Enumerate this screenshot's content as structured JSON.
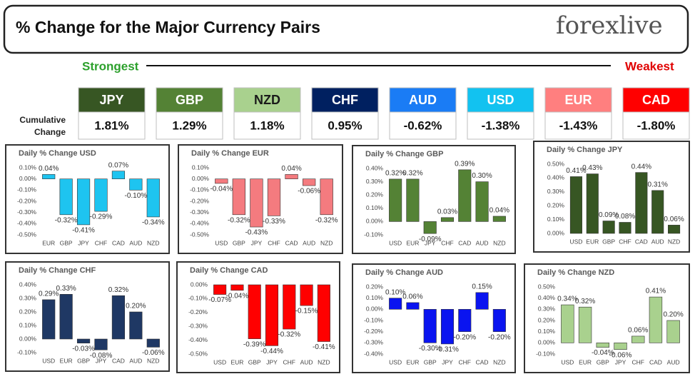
{
  "header": {
    "title": "% Change for the Major Currency Pairs",
    "logo": "forexlive"
  },
  "strength": {
    "strongest": "Strongest",
    "weakest": "Weakest",
    "row_label": [
      "Cumulative",
      "Change"
    ],
    "currencies": [
      {
        "name": "JPY",
        "value": "1.81%",
        "color": "#375623",
        "text_color": "#ffffff"
      },
      {
        "name": "GBP",
        "value": "1.29%",
        "color": "#548235",
        "text_color": "#ffffff"
      },
      {
        "name": "NZD",
        "value": "1.18%",
        "color": "#a9d18e",
        "text_color": "#1a1a1a"
      },
      {
        "name": "CHF",
        "value": "0.95%",
        "color": "#002060",
        "text_color": "#ffffff"
      },
      {
        "name": "AUD",
        "value": "-0.62%",
        "color": "#1a7cf5",
        "text_color": "#ffffff"
      },
      {
        "name": "USD",
        "value": "-1.38%",
        "color": "#12c2f0",
        "text_color": "#ffffff"
      },
      {
        "name": "EUR",
        "value": "-1.43%",
        "color": "#ff7f7f",
        "text_color": "#ffffff"
      },
      {
        "name": "CAD",
        "value": "-1.80%",
        "color": "#ff0000",
        "text_color": "#ffffff"
      }
    ]
  },
  "chart_data": [
    {
      "type": "bar",
      "title": "Daily % Change USD",
      "color": "#1ec4f0",
      "grid": false,
      "categories": [
        "EUR",
        "GBP",
        "JPY",
        "CHF",
        "CAD",
        "AUD",
        "NZD"
      ],
      "values": [
        0.04,
        -0.32,
        -0.41,
        -0.29,
        0.07,
        -0.1,
        -0.34
      ],
      "value_labels": [
        "0.04%",
        "-0.32%",
        "-0.41%",
        "-0.29%",
        "0.07%",
        "-0.10%",
        "-0.34%"
      ],
      "ylim": [
        -0.5,
        0.1
      ],
      "yticks": [
        {
          "value": 0.1,
          "label": "0.10%"
        },
        {
          "value": 0,
          "label": "0.00%"
        },
        {
          "value": -0.1,
          "label": "-0.10%"
        },
        {
          "value": -0.2,
          "label": "-0.20%"
        },
        {
          "value": -0.3,
          "label": "-0.30%"
        },
        {
          "value": -0.4,
          "label": "-0.40%"
        },
        {
          "value": -0.5,
          "label": "-0.50%"
        }
      ]
    },
    {
      "type": "bar",
      "title": "Daily % Change EUR",
      "color": "#f47b7f",
      "grid": false,
      "categories": [
        "USD",
        "GBP",
        "JPY",
        "CHF",
        "CAD",
        "AUD",
        "NZD"
      ],
      "values": [
        -0.04,
        -0.32,
        -0.43,
        -0.33,
        0.04,
        -0.06,
        -0.32
      ],
      "value_labels": [
        "-0.04%",
        "-0.32%",
        "-0.43%",
        "-0.33%",
        "0.04%",
        "-0.06%",
        "-0.32%"
      ],
      "ylim": [
        -0.5,
        0.1
      ],
      "yticks": [
        {
          "value": 0.1,
          "label": "0.10%"
        },
        {
          "value": 0,
          "label": "0.00%"
        },
        {
          "value": -0.1,
          "label": "-0.10%"
        },
        {
          "value": -0.2,
          "label": "-0.20%"
        },
        {
          "value": -0.3,
          "label": "-0.30%"
        },
        {
          "value": -0.4,
          "label": "-0.40%"
        },
        {
          "value": -0.5,
          "label": "-0.50%"
        }
      ]
    },
    {
      "type": "bar",
      "title": "Daily % Change GBP",
      "color": "#548235",
      "grid": false,
      "categories": [
        "USD",
        "EUR",
        "JPY",
        "CHF",
        "CAD",
        "AUD",
        "NZD"
      ],
      "values": [
        0.32,
        0.32,
        -0.09,
        0.03,
        0.39,
        0.3,
        0.04
      ],
      "value_labels": [
        "0.32%",
        "0.32%",
        "-0.09%",
        "0.03%",
        "0.39%",
        "0.30%",
        "0.04%"
      ],
      "ylim": [
        -0.1,
        0.4
      ],
      "yticks": [
        {
          "value": 0.4,
          "label": "0.40%"
        },
        {
          "value": 0.3,
          "label": "0.30%"
        },
        {
          "value": 0.2,
          "label": "0.20%"
        },
        {
          "value": 0.1,
          "label": "0.10%"
        },
        {
          "value": 0,
          "label": "0.00%"
        },
        {
          "value": -0.1,
          "label": "-0.10%"
        }
      ]
    },
    {
      "type": "bar",
      "title": "Daily % Change JPY",
      "color": "#375623",
      "grid": false,
      "categories": [
        "USD",
        "EUR",
        "GBP",
        "CHF",
        "CAD",
        "AUD",
        "NZD"
      ],
      "values": [
        0.41,
        0.43,
        0.09,
        0.08,
        0.44,
        0.31,
        0.06
      ],
      "value_labels": [
        "0.41%",
        "0.43%",
        "0.09%",
        "0.08%",
        "0.44%",
        "0.31%",
        "0.06%"
      ],
      "ylim": [
        0,
        0.5
      ],
      "yticks": [
        {
          "value": 0.5,
          "label": "0.50%"
        },
        {
          "value": 0.4,
          "label": "0.40%"
        },
        {
          "value": 0.3,
          "label": "0.30%"
        },
        {
          "value": 0.2,
          "label": "0.20%"
        },
        {
          "value": 0.1,
          "label": "0.10%"
        },
        {
          "value": 0,
          "label": "0.00%"
        }
      ]
    },
    {
      "type": "bar",
      "title": "Daily % Change CHF",
      "color": "#1f3864",
      "grid": false,
      "categories": [
        "USD",
        "EUR",
        "GBP",
        "JPY",
        "CAD",
        "AUD",
        "NZD"
      ],
      "values": [
        0.29,
        0.33,
        -0.03,
        -0.08,
        0.32,
        0.2,
        -0.06
      ],
      "value_labels": [
        "0.29%",
        "0.33%",
        "-0.03%",
        "-0.08%",
        "0.32%",
        "0.20%",
        "-0.06%"
      ],
      "ylim": [
        -0.1,
        0.4
      ],
      "yticks": [
        {
          "value": 0.4,
          "label": "0.40%"
        },
        {
          "value": 0.3,
          "label": "0.30%"
        },
        {
          "value": 0.2,
          "label": "0.20%"
        },
        {
          "value": 0.1,
          "label": "0.10%"
        },
        {
          "value": 0,
          "label": "0.00%"
        },
        {
          "value": -0.1,
          "label": "-0.10%"
        }
      ]
    },
    {
      "type": "bar",
      "title": "Daily % Change CAD",
      "color": "#ff0000",
      "grid": false,
      "categories": [
        "USD",
        "EUR",
        "GBP",
        "JPY",
        "CHF",
        "AUD",
        "NZD"
      ],
      "values": [
        -0.07,
        -0.04,
        -0.39,
        -0.44,
        -0.32,
        -0.15,
        -0.41
      ],
      "value_labels": [
        "-0.07%",
        "-0.04%",
        "-0.39%",
        "-0.44%",
        "-0.32%",
        "-0.15%",
        "-0.41%"
      ],
      "ylim": [
        -0.5,
        0
      ],
      "yticks": [
        {
          "value": 0,
          "label": "0.00%"
        },
        {
          "value": -0.1,
          "label": "-0.10%"
        },
        {
          "value": -0.2,
          "label": "-0.20%"
        },
        {
          "value": -0.3,
          "label": "-0.30%"
        },
        {
          "value": -0.4,
          "label": "-0.40%"
        },
        {
          "value": -0.5,
          "label": "-0.50%"
        }
      ]
    },
    {
      "type": "bar",
      "title": "Daily % Change AUD",
      "color": "#0a14f0",
      "grid": false,
      "categories": [
        "USD",
        "EUR",
        "GBP",
        "JPY",
        "CHF",
        "CAD",
        "NZD"
      ],
      "values": [
        0.1,
        0.06,
        -0.3,
        -0.31,
        -0.2,
        0.15,
        -0.2
      ],
      "value_labels": [
        "0.10%",
        "0.06%",
        "-0.30%",
        "-0.31%",
        "-0.20%",
        "0.15%",
        "-0.20%"
      ],
      "ylim": [
        -0.4,
        0.2
      ],
      "yticks": [
        {
          "value": 0.2,
          "label": "0.20%"
        },
        {
          "value": 0.1,
          "label": "0.10%"
        },
        {
          "value": 0,
          "label": "0.00%"
        },
        {
          "value": -0.1,
          "label": "-0.10%"
        },
        {
          "value": -0.2,
          "label": "-0.20%"
        },
        {
          "value": -0.3,
          "label": "-0.30%"
        },
        {
          "value": -0.4,
          "label": "-0.40%"
        }
      ]
    },
    {
      "type": "bar",
      "title": "Daily % Change NZD",
      "color": "#a9d18e",
      "grid": false,
      "categories": [
        "USD",
        "EUR",
        "GBP",
        "JPY",
        "CHF",
        "CAD",
        "AUD"
      ],
      "values": [
        0.34,
        0.32,
        -0.04,
        -0.06,
        0.06,
        0.41,
        0.2
      ],
      "value_labels": [
        "0.34%",
        "0.32%",
        "-0.04%",
        "-0.06%",
        "0.06%",
        "0.41%",
        "0.20%"
      ],
      "ylim": [
        -0.1,
        0.5
      ],
      "yticks": [
        {
          "value": 0.5,
          "label": "0.50%"
        },
        {
          "value": 0.4,
          "label": "0.40%"
        },
        {
          "value": 0.3,
          "label": "0.30%"
        },
        {
          "value": 0.2,
          "label": "0.20%"
        },
        {
          "value": 0.1,
          "label": "0.10%"
        },
        {
          "value": 0,
          "label": "0.00%"
        },
        {
          "value": -0.1,
          "label": "-0.10%"
        }
      ]
    }
  ]
}
